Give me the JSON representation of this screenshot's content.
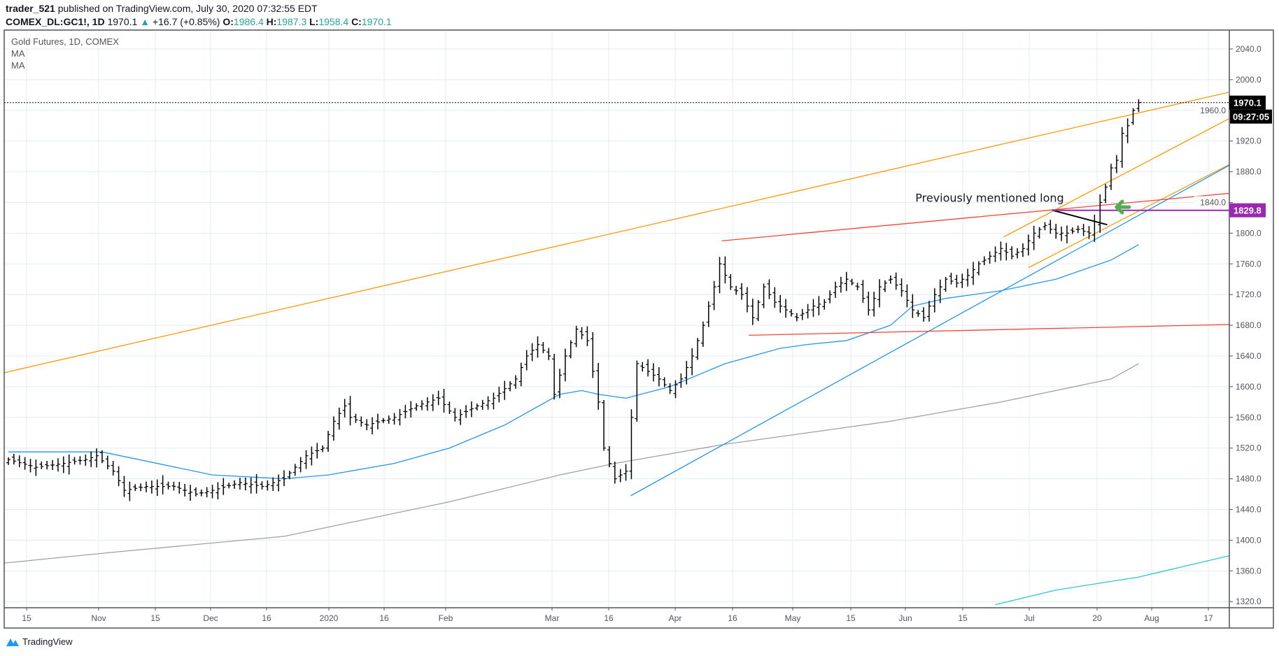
{
  "header": {
    "author": "trader_521",
    "published": "published on TradingView.com, July 30, 2020 07:32:55 EDT",
    "symbol": "COMEX_DL:GC1!, 1D",
    "last": "1970.1",
    "change": "+16.7 (+0.85%)",
    "o_label": "O:",
    "o": "1986.4",
    "h_label": "H:",
    "h": "1987.3",
    "l_label": "L:",
    "l": "1958.4",
    "c_label": "C:",
    "c": "1970.1",
    "up_icon": "triangle-up-icon"
  },
  "legend": {
    "title": "Gold Futures, 1D, COMEX",
    "ma1": "MA",
    "ma2": "MA"
  },
  "footer": {
    "brand": "TradingView"
  },
  "colors": {
    "bars": "#000000",
    "ma50": "#2196f3",
    "ma200": "#a0a0a0",
    "ma_cyan": "#26c6da",
    "trend_orange": "#ff9800",
    "trend_red": "#f44336",
    "trend_blue": "#2196f3",
    "purple": "#9c27b0",
    "arrow": "#4caf50",
    "grid": "#e1ecf2"
  },
  "chart_data": {
    "type": "ohlc",
    "title": "Gold Futures, 1D, COMEX",
    "ylim": [
      1300,
      2060
    ],
    "yticks": [
      "2040.0",
      "2000.0",
      "1960.0",
      "1920.0",
      "1880.0",
      "1840.0",
      "1800.0",
      "1760.0",
      "1720.0",
      "1680.0",
      "1640.0",
      "1600.0",
      "1560.0",
      "1520.0",
      "1480.0",
      "1440.0",
      "1400.0",
      "1360.0",
      "1320.0"
    ],
    "xticks": [
      "15",
      "Nov",
      "15",
      "Dec",
      "16",
      "2020",
      "16",
      "Feb",
      "Mar",
      "16",
      "Apr",
      "16",
      "May",
      "15",
      "Jun",
      "15",
      "Jul",
      "20",
      "Aug",
      "17"
    ],
    "close_anchors": [
      [
        0,
        1505
      ],
      [
        5,
        1495
      ],
      [
        10,
        1500
      ],
      [
        14,
        1505
      ],
      [
        16,
        1510
      ],
      [
        19,
        1490
      ],
      [
        21,
        1465
      ],
      [
        25,
        1470
      ],
      [
        30,
        1470
      ],
      [
        34,
        1460
      ],
      [
        37,
        1465
      ],
      [
        42,
        1475
      ],
      [
        46,
        1470
      ],
      [
        50,
        1480
      ],
      [
        54,
        1510
      ],
      [
        57,
        1520
      ],
      [
        59,
        1555
      ],
      [
        61,
        1575
      ],
      [
        62,
        1560
      ],
      [
        65,
        1550
      ],
      [
        70,
        1560
      ],
      [
        74,
        1575
      ],
      [
        78,
        1585
      ],
      [
        81,
        1560
      ],
      [
        85,
        1575
      ],
      [
        88,
        1585
      ],
      [
        92,
        1610
      ],
      [
        94,
        1640
      ],
      [
        96,
        1655
      ],
      [
        98,
        1640
      ],
      [
        99,
        1590
      ],
      [
        101,
        1640
      ],
      [
        103,
        1675
      ],
      [
        105,
        1660
      ],
      [
        106,
        1620
      ],
      [
        107,
        1580
      ],
      [
        108,
        1520
      ],
      [
        110,
        1480
      ],
      [
        112,
        1490
      ],
      [
        114,
        1630
      ],
      [
        116,
        1620
      ],
      [
        118,
        1610
      ],
      [
        120,
        1595
      ],
      [
        122,
        1610
      ],
      [
        124,
        1640
      ],
      [
        126,
        1680
      ],
      [
        128,
        1730
      ],
      [
        129,
        1760
      ],
      [
        131,
        1730
      ],
      [
        133,
        1720
      ],
      [
        135,
        1690
      ],
      [
        137,
        1730
      ],
      [
        139,
        1710
      ],
      [
        141,
        1700
      ],
      [
        143,
        1690
      ],
      [
        146,
        1705
      ],
      [
        148,
        1710
      ],
      [
        150,
        1730
      ],
      [
        152,
        1740
      ],
      [
        154,
        1730
      ],
      [
        156,
        1700
      ],
      [
        158,
        1730
      ],
      [
        160,
        1740
      ],
      [
        162,
        1725
      ],
      [
        164,
        1700
      ],
      [
        166,
        1690
      ],
      [
        168,
        1720
      ],
      [
        170,
        1740
      ],
      [
        172,
        1735
      ],
      [
        174,
        1745
      ],
      [
        176,
        1760
      ],
      [
        178,
        1770
      ],
      [
        180,
        1780
      ],
      [
        182,
        1770
      ],
      [
        184,
        1780
      ],
      [
        186,
        1800
      ],
      [
        188,
        1810
      ],
      [
        190,
        1800
      ],
      [
        192,
        1800
      ],
      [
        194,
        1805
      ],
      [
        196,
        1800
      ],
      [
        197,
        1815
      ],
      [
        198,
        1840
      ],
      [
        199,
        1860
      ],
      [
        200,
        1885
      ],
      [
        201,
        1895
      ],
      [
        202,
        1930
      ],
      [
        203,
        1940
      ],
      [
        204,
        1960
      ],
      [
        205,
        1970.1
      ]
    ],
    "ma_series": [
      {
        "name": "MA (blue)",
        "color_key": "ma50",
        "points": [
          [
            0,
            1515
          ],
          [
            17,
            1515
          ],
          [
            37,
            1485
          ],
          [
            50,
            1480
          ],
          [
            58,
            1485
          ],
          [
            70,
            1500
          ],
          [
            80,
            1520
          ],
          [
            90,
            1550
          ],
          [
            95,
            1570
          ],
          [
            100,
            1590
          ],
          [
            104,
            1595
          ],
          [
            107,
            1590
          ],
          [
            112,
            1585
          ],
          [
            120,
            1600
          ],
          [
            130,
            1630
          ],
          [
            140,
            1650
          ],
          [
            145,
            1655
          ],
          [
            152,
            1660
          ],
          [
            160,
            1680
          ],
          [
            164,
            1705
          ],
          [
            170,
            1715
          ],
          [
            180,
            1725
          ],
          [
            190,
            1740
          ],
          [
            200,
            1765
          ],
          [
            205,
            1785
          ]
        ]
      },
      {
        "name": "MA (grey)",
        "color_key": "ma200",
        "points": [
          [
            -1,
            1370
          ],
          [
            20,
            1385
          ],
          [
            50,
            1405
          ],
          [
            80,
            1450
          ],
          [
            100,
            1485
          ],
          [
            110,
            1500
          ],
          [
            130,
            1525
          ],
          [
            160,
            1555
          ],
          [
            180,
            1580
          ],
          [
            200,
            1610
          ],
          [
            205,
            1630
          ]
        ]
      },
      {
        "name": "MA (cyan)",
        "color_key": "ma_cyan",
        "points": [
          [
            179,
            1316
          ],
          [
            190,
            1335
          ],
          [
            205,
            1352
          ],
          [
            221.6,
            1380
          ]
        ]
      }
    ],
    "trendlines": [
      {
        "color_key": "trend_orange",
        "from": [
          -1.5,
          1617
        ],
        "to": [
          221.6,
          1984
        ]
      },
      {
        "color_key": "trend_orange",
        "from": [
          180.5,
          1795
        ],
        "to": [
          221.6,
          1950
        ]
      },
      {
        "color_key": "trend_orange",
        "from": [
          185,
          1755
        ],
        "to": [
          221.6,
          1890
        ]
      },
      {
        "color_key": "trend_blue",
        "from": [
          112.9,
          1458
        ],
        "to": [
          221.6,
          1889
        ]
      },
      {
        "color_key": "trend_red",
        "from": [
          129.4,
          1790
        ],
        "to": [
          221.6,
          1852
        ]
      },
      {
        "color_key": "trend_red",
        "from": [
          134.3,
          1667
        ],
        "to": [
          221.6,
          1681
        ]
      },
      {
        "color_key": "bars",
        "from": [
          189.3,
          1830
        ],
        "to": [
          199.3,
          1811
        ]
      }
    ],
    "horizontal_level": {
      "value": 1829.8,
      "label": "1829.8",
      "from_index": 189.3
    },
    "last_price": {
      "value": 1970.1,
      "label": "1970.1",
      "countdown": "09:27:05"
    },
    "annotation": {
      "text": "Previously mentioned long",
      "index": 164.5,
      "price": 1841
    },
    "arrow": {
      "index": 201,
      "price": 1834,
      "direction": "left"
    }
  }
}
